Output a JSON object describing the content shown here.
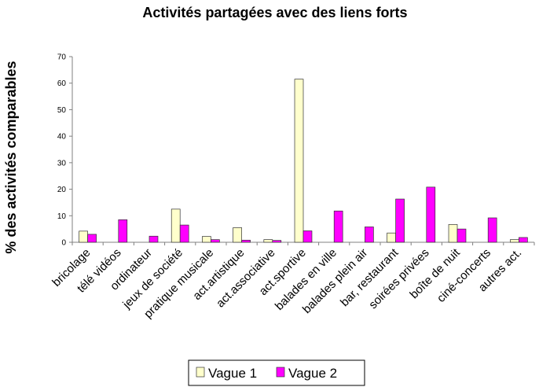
{
  "chart_data": {
    "type": "bar",
    "title": "Activités partagées avec des liens forts",
    "xlabel": "",
    "ylabel": "% des activités comparables",
    "ylim": [
      0,
      70
    ],
    "yticks": [
      0,
      10,
      20,
      30,
      40,
      50,
      60,
      70
    ],
    "grid": false,
    "legend": "bottom",
    "categories": [
      "bricolage",
      "télé vidéos",
      "ordinateur",
      "jeux de société",
      "pratique musicale",
      "act.artistique",
      "act.associative",
      "act.sportive",
      "balades en ville",
      "balades plein air",
      "bar, restaurant",
      "soirées privées",
      "boîte de nuit",
      "ciné-concerts",
      "autres act."
    ],
    "series": [
      {
        "name": "Vague 1",
        "color": "#ffffcc",
        "values": [
          4.2,
          0,
          0,
          12.5,
          2.2,
          5.5,
          1.0,
          61.5,
          0,
          0,
          3.5,
          0,
          6.7,
          0,
          1.0
        ]
      },
      {
        "name": "Vague 2",
        "color": "#ff00ff",
        "values": [
          3.0,
          8.5,
          2.3,
          6.5,
          1.0,
          0.8,
          0.7,
          4.3,
          11.8,
          5.8,
          16.3,
          20.8,
          5.0,
          9.2,
          1.8
        ]
      }
    ]
  }
}
